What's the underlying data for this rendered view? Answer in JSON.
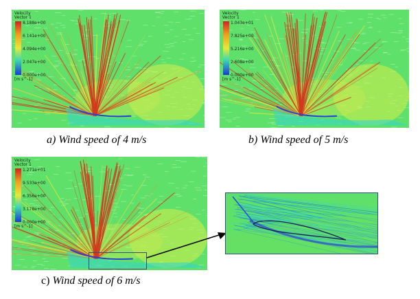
{
  "panels": [
    {
      "id": "a",
      "caption_prefix": "a)",
      "caption_text": "Wind speed of 4 m/s",
      "legend_title": "Velocity\nVector 1",
      "legend_ticks": [
        "8.188e+00",
        "6.141e+00",
        "4.094e+00",
        "2.047e+00",
        "0.000e+00"
      ],
      "legend_unit": "[m s^-1]"
    },
    {
      "id": "b",
      "caption_prefix": "b)",
      "caption_text": "Wind speed of 5 m/s",
      "legend_title": "Velocity\nVector 1",
      "legend_ticks": [
        "1.043e+01",
        "7.825e+00",
        "5.216e+00",
        "2.608e+00",
        "0.000e+00"
      ],
      "legend_unit": "[m s^-1]"
    },
    {
      "id": "c",
      "caption_prefix": "c)",
      "caption_text": "Wind speed of 6 m/s",
      "legend_title": "Velocity\nVector 1",
      "legend_ticks": [
        "1.271e+01",
        "9.533e+00",
        "6.356e+00",
        "3.178e+00",
        "0.000e+00"
      ],
      "legend_unit": "[m s^-1]"
    }
  ],
  "colors": {
    "field_bg": "#5fe06a",
    "streak_red": "#d2381e",
    "streak_yellow": "#e8e43a",
    "streak_cyan": "#35d6c8",
    "blade_blue": "#2a3fd8",
    "zoom_box": "#3a4a7a"
  }
}
